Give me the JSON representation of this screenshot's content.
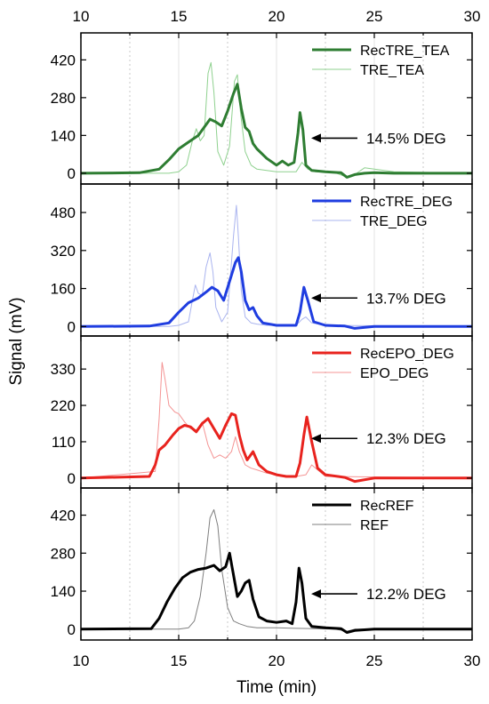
{
  "chart_data": {
    "type": "line",
    "xlabel": "Time (min)",
    "ylabel": "Signal (mV)",
    "xlim": [
      10,
      30
    ],
    "xticks": [
      10,
      15,
      20,
      25,
      30
    ],
    "grid": "vertical dotted lines at minor x ticks",
    "panels": [
      {
        "ylim": [
          -40,
          520
        ],
        "yticks": [
          0,
          140,
          280,
          420
        ],
        "legend": "top-right",
        "annotation": {
          "text": "14.5% DEG",
          "x": 21.5,
          "y": 130
        },
        "series": [
          {
            "name": "RecTRE_TEA",
            "color": "#2e7d32",
            "width": 3,
            "x": [
              10,
              13,
              14,
              14.5,
              15,
              15.5,
              16,
              16.3,
              16.6,
              16.9,
              17.2,
              17.5,
              17.8,
              18,
              18.2,
              18.4,
              18.6,
              18.8,
              19,
              19.5,
              20,
              20.3,
              20.6,
              20.9,
              21.1,
              21.2,
              21.35,
              21.5,
              21.8,
              22.5,
              23.3,
              23.6,
              24,
              24.5,
              25,
              26,
              27,
              30
            ],
            "y": [
              0,
              2,
              15,
              50,
              90,
              115,
              140,
              170,
              200,
              190,
              175,
              230,
              295,
              330,
              240,
              170,
              155,
              110,
              90,
              55,
              30,
              45,
              30,
              40,
              150,
              225,
              160,
              30,
              10,
              5,
              2,
              -15,
              -5,
              0,
              2,
              0,
              0,
              0
            ]
          },
          {
            "name": "TRE_TEA",
            "color": "#8fd18f",
            "width": 1,
            "x": [
              10,
              14.5,
              15,
              15.4,
              15.7,
              15.9,
              16.1,
              16.3,
              16.5,
              16.65,
              16.8,
              17,
              17.3,
              17.6,
              17.85,
              18,
              18.15,
              18.4,
              18.7,
              19,
              19.5,
              20,
              21,
              21.3,
              21.6,
              22,
              23,
              23.6,
              24,
              24.5,
              25,
              26,
              30
            ],
            "y": [
              0,
              0,
              5,
              30,
              120,
              165,
              120,
              140,
              370,
              410,
              300,
              80,
              30,
              100,
              340,
              365,
              230,
              80,
              30,
              15,
              10,
              5,
              5,
              40,
              15,
              5,
              2,
              -15,
              -5,
              20,
              15,
              5,
              0
            ]
          }
        ]
      },
      {
        "ylim": [
          -40,
          600
        ],
        "yticks": [
          0,
          160,
          320,
          480
        ],
        "legend": "top-right",
        "annotation": {
          "text": "13.7% DEG",
          "x": 21.5,
          "y": 120
        },
        "series": [
          {
            "name": "RecTRE_DEG",
            "color": "#1f3de0",
            "width": 3,
            "x": [
              10,
              13.5,
              14.5,
              15,
              15.5,
              16,
              16.4,
              16.7,
              17,
              17.3,
              17.6,
              17.9,
              18.05,
              18.2,
              18.4,
              18.6,
              18.8,
              19,
              19.3,
              20,
              21,
              21.2,
              21.4,
              21.6,
              21.9,
              22.5,
              23.5,
              24,
              25,
              30
            ],
            "y": [
              0,
              2,
              15,
              60,
              100,
              120,
              145,
              165,
              150,
              110,
              190,
              270,
              290,
              230,
              110,
              70,
              80,
              45,
              15,
              5,
              5,
              60,
              165,
              110,
              20,
              5,
              2,
              -8,
              0,
              0
            ]
          },
          {
            "name": "TRE_DEG",
            "color": "#aab4ef",
            "width": 1,
            "x": [
              10,
              14.5,
              15,
              15.5,
              15.7,
              15.85,
              16,
              16.2,
              16.4,
              16.6,
              16.75,
              16.9,
              17.2,
              17.5,
              17.8,
              17.95,
              18.05,
              18.2,
              18.4,
              18.7,
              19,
              19.5,
              20,
              21,
              21.3,
              21.5,
              21.8,
              22.5,
              30
            ],
            "y": [
              0,
              0,
              5,
              20,
              110,
              175,
              140,
              130,
              250,
              310,
              230,
              80,
              20,
              60,
              380,
              510,
              380,
              150,
              40,
              15,
              10,
              5,
              5,
              5,
              30,
              40,
              15,
              5,
              0
            ]
          }
        ]
      },
      {
        "ylim": [
          -30,
          430
        ],
        "yticks": [
          0,
          110,
          220,
          330
        ],
        "legend": "top-right",
        "annotation": {
          "text": "12.3% DEG",
          "x": 21.5,
          "y": 120
        },
        "series": [
          {
            "name": "RecEPO_DEG",
            "color": "#e8231e",
            "width": 3,
            "x": [
              10,
              13.5,
              13.8,
              14,
              14.3,
              14.7,
              15,
              15.3,
              15.6,
              15.9,
              16.2,
              16.5,
              16.8,
              17.1,
              17.4,
              17.7,
              17.9,
              18.1,
              18.3,
              18.5,
              18.8,
              19.1,
              19.5,
              20,
              20.5,
              21,
              21.2,
              21.4,
              21.55,
              21.8,
              22.1,
              22.5,
              23.5,
              24,
              25,
              30
            ],
            "y": [
              0,
              5,
              40,
              85,
              100,
              130,
              150,
              160,
              155,
              140,
              165,
              180,
              150,
              120,
              160,
              195,
              190,
              130,
              85,
              55,
              80,
              40,
              20,
              10,
              5,
              5,
              45,
              130,
              185,
              110,
              30,
              10,
              2,
              -10,
              0,
              0
            ]
          },
          {
            "name": "EPO_DEG",
            "color": "#f49494",
            "width": 1,
            "x": [
              10,
              13.8,
              14,
              14.15,
              14.3,
              14.5,
              14.8,
              15,
              15.3,
              15.6,
              15.9,
              16.2,
              16.5,
              16.8,
              17.1,
              17.4,
              17.7,
              17.9,
              18.1,
              18.4,
              18.7,
              19,
              19.5,
              20,
              21,
              21.5,
              21.8,
              22.5,
              30
            ],
            "y": [
              0,
              20,
              180,
              350,
              300,
              220,
              200,
              195,
              170,
              150,
              145,
              170,
              100,
              60,
              70,
              60,
              80,
              125,
              80,
              40,
              30,
              25,
              15,
              10,
              5,
              10,
              40,
              5,
              0
            ]
          }
        ]
      },
      {
        "ylim": [
          -40,
          520
        ],
        "yticks": [
          0,
          140,
          280,
          420
        ],
        "legend": "top-right",
        "annotation": {
          "text": "12.2% DEG",
          "x": 21.5,
          "y": 130
        },
        "series": [
          {
            "name": "RecREF",
            "color": "#000000",
            "width": 3,
            "x": [
              10,
              13.6,
              14,
              14.4,
              14.8,
              15.2,
              15.6,
              16,
              16.4,
              16.8,
              17.1,
              17.4,
              17.6,
              17.8,
              18,
              18.2,
              18.4,
              18.6,
              18.8,
              19.1,
              19.5,
              20,
              20.5,
              20.8,
              21,
              21.15,
              21.3,
              21.5,
              21.8,
              22.5,
              23.3,
              23.6,
              24,
              25,
              30
            ],
            "y": [
              0,
              2,
              40,
              100,
              150,
              190,
              210,
              220,
              225,
              235,
              215,
              230,
              280,
              200,
              120,
              140,
              170,
              180,
              110,
              45,
              30,
              25,
              30,
              20,
              100,
              225,
              170,
              40,
              10,
              5,
              2,
              -12,
              -5,
              0,
              0
            ]
          },
          {
            "name": "REF",
            "color": "#7f7f7f",
            "width": 1,
            "x": [
              10,
              15,
              15.5,
              15.8,
              16.1,
              16.4,
              16.6,
              16.8,
              17,
              17.2,
              17.5,
              17.8,
              18.1,
              18.5,
              19,
              20,
              21,
              22,
              23,
              23.6,
              24,
              30
            ],
            "y": [
              0,
              0,
              5,
              30,
              120,
              280,
              410,
              440,
              380,
              220,
              80,
              30,
              20,
              10,
              5,
              5,
              3,
              2,
              0,
              -8,
              0,
              0
            ]
          }
        ]
      }
    ]
  }
}
